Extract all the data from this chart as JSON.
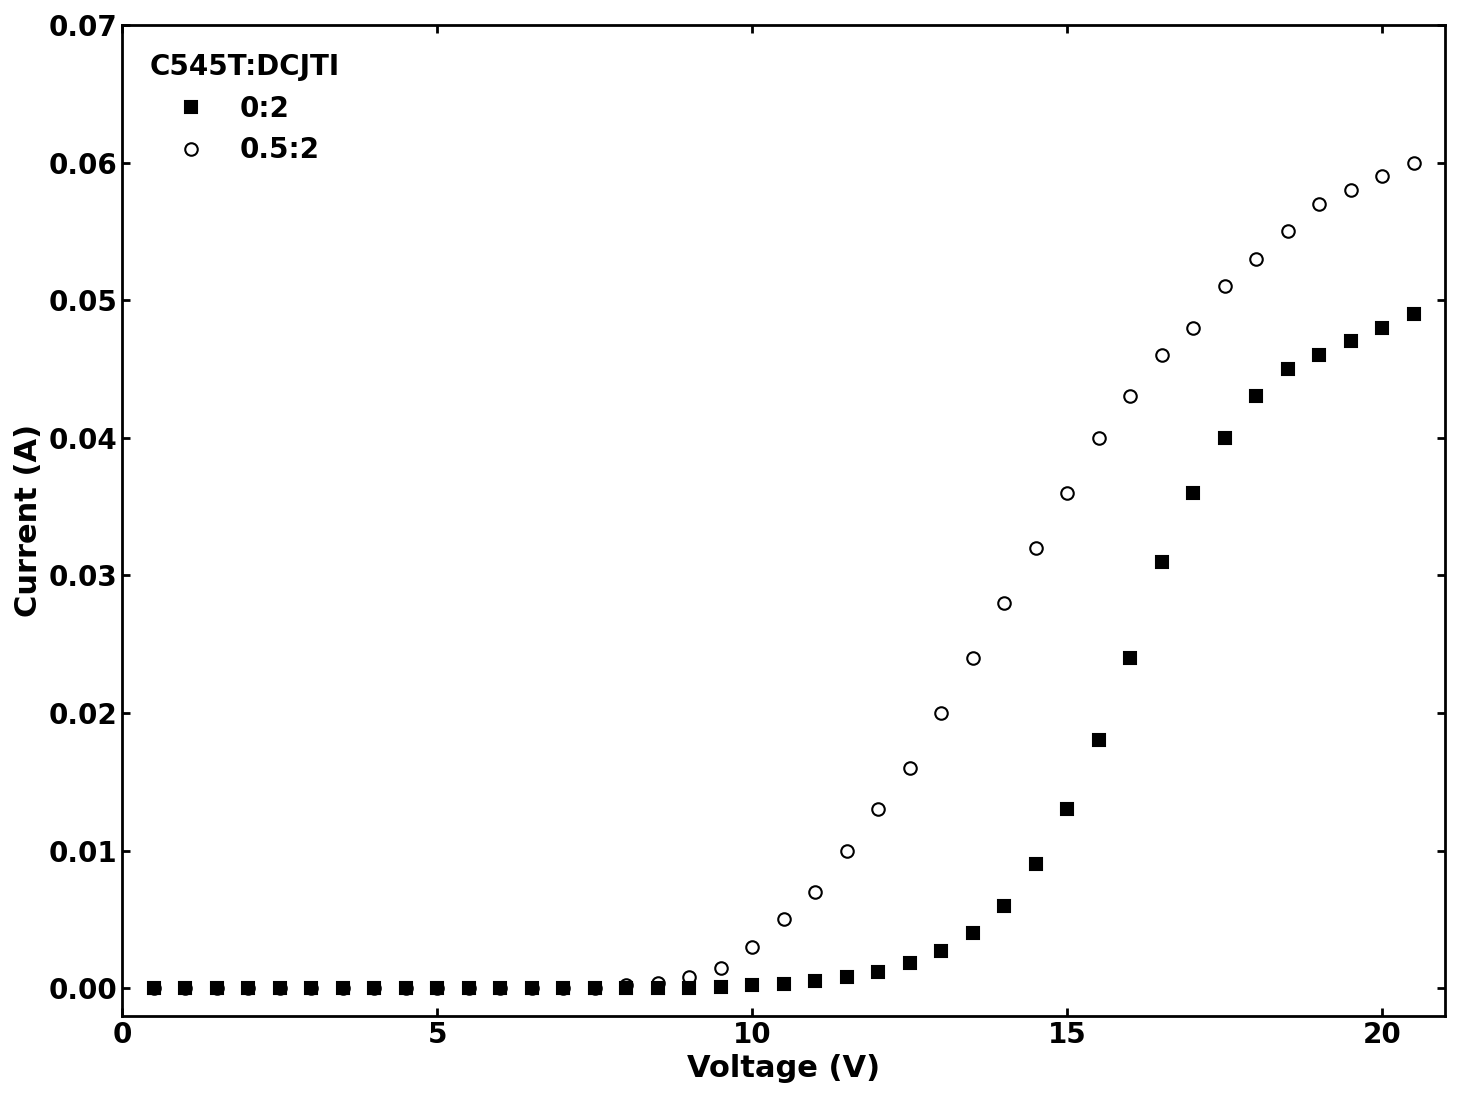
{
  "title": "",
  "xlabel": "Voltage (V)",
  "ylabel": "Current (A)",
  "xlim": [
    0,
    21
  ],
  "ylim": [
    -0.002,
    0.07
  ],
  "xticks": [
    0,
    5,
    10,
    15,
    20
  ],
  "yticks": [
    0.0,
    0.01,
    0.02,
    0.03,
    0.04,
    0.05,
    0.06,
    0.07
  ],
  "legend_title": "C545T:DCJTI",
  "series": [
    {
      "label": "0:2",
      "marker": "s",
      "color": "black",
      "fillstyle": "full",
      "markersize": 9,
      "x": [
        0.5,
        1.0,
        1.5,
        2.0,
        2.5,
        3.0,
        3.5,
        4.0,
        4.5,
        5.0,
        5.5,
        6.0,
        6.5,
        7.0,
        7.5,
        8.0,
        8.5,
        9.0,
        9.5,
        10.0,
        10.5,
        11.0,
        11.5,
        12.0,
        12.5,
        13.0,
        13.5,
        14.0,
        14.5,
        15.0,
        15.5,
        16.0,
        16.5,
        17.0,
        17.5,
        18.0,
        18.5,
        19.0,
        19.5,
        20.0,
        20.5
      ],
      "y": [
        0.0,
        0.0,
        0.0,
        0.0,
        0.0,
        0.0,
        0.0,
        0.0,
        0.0,
        0.0,
        0.0,
        0.0,
        0.0,
        0.0,
        0.0,
        0.0,
        0.0,
        0.0,
        0.0001,
        0.0002,
        0.0003,
        0.0005,
        0.0008,
        0.0012,
        0.0018,
        0.0027,
        0.004,
        0.006,
        0.009,
        0.013,
        0.018,
        0.024,
        0.031,
        0.036,
        0.04,
        0.043,
        0.045,
        0.046,
        0.047,
        0.048,
        0.049
      ]
    },
    {
      "label": "0.5:2",
      "marker": "o",
      "color": "black",
      "fillstyle": "none",
      "markersize": 9,
      "x": [
        0.5,
        1.0,
        1.5,
        2.0,
        2.5,
        3.0,
        3.5,
        4.0,
        4.5,
        5.0,
        5.5,
        6.0,
        6.5,
        7.0,
        7.5,
        8.0,
        8.5,
        9.0,
        9.5,
        10.0,
        10.5,
        11.0,
        11.5,
        12.0,
        12.5,
        13.0,
        13.5,
        14.0,
        14.5,
        15.0,
        15.5,
        16.0,
        16.5,
        17.0,
        17.5,
        18.0,
        18.5,
        19.0,
        19.5,
        20.0,
        20.5
      ],
      "y": [
        0.0,
        0.0,
        0.0,
        0.0,
        0.0,
        0.0,
        0.0,
        0.0,
        0.0,
        0.0,
        0.0,
        0.0,
        0.0,
        0.0,
        0.0,
        0.0002,
        0.0004,
        0.0008,
        0.0015,
        0.003,
        0.005,
        0.007,
        0.01,
        0.013,
        0.016,
        0.02,
        0.024,
        0.028,
        0.032,
        0.036,
        0.04,
        0.043,
        0.046,
        0.048,
        0.051,
        0.053,
        0.055,
        0.057,
        0.058,
        0.059,
        0.06
      ]
    }
  ],
  "background_color": "#ffffff",
  "axis_label_fontsize": 22,
  "tick_fontsize": 20,
  "legend_fontsize": 20,
  "legend_title_fontsize": 20
}
